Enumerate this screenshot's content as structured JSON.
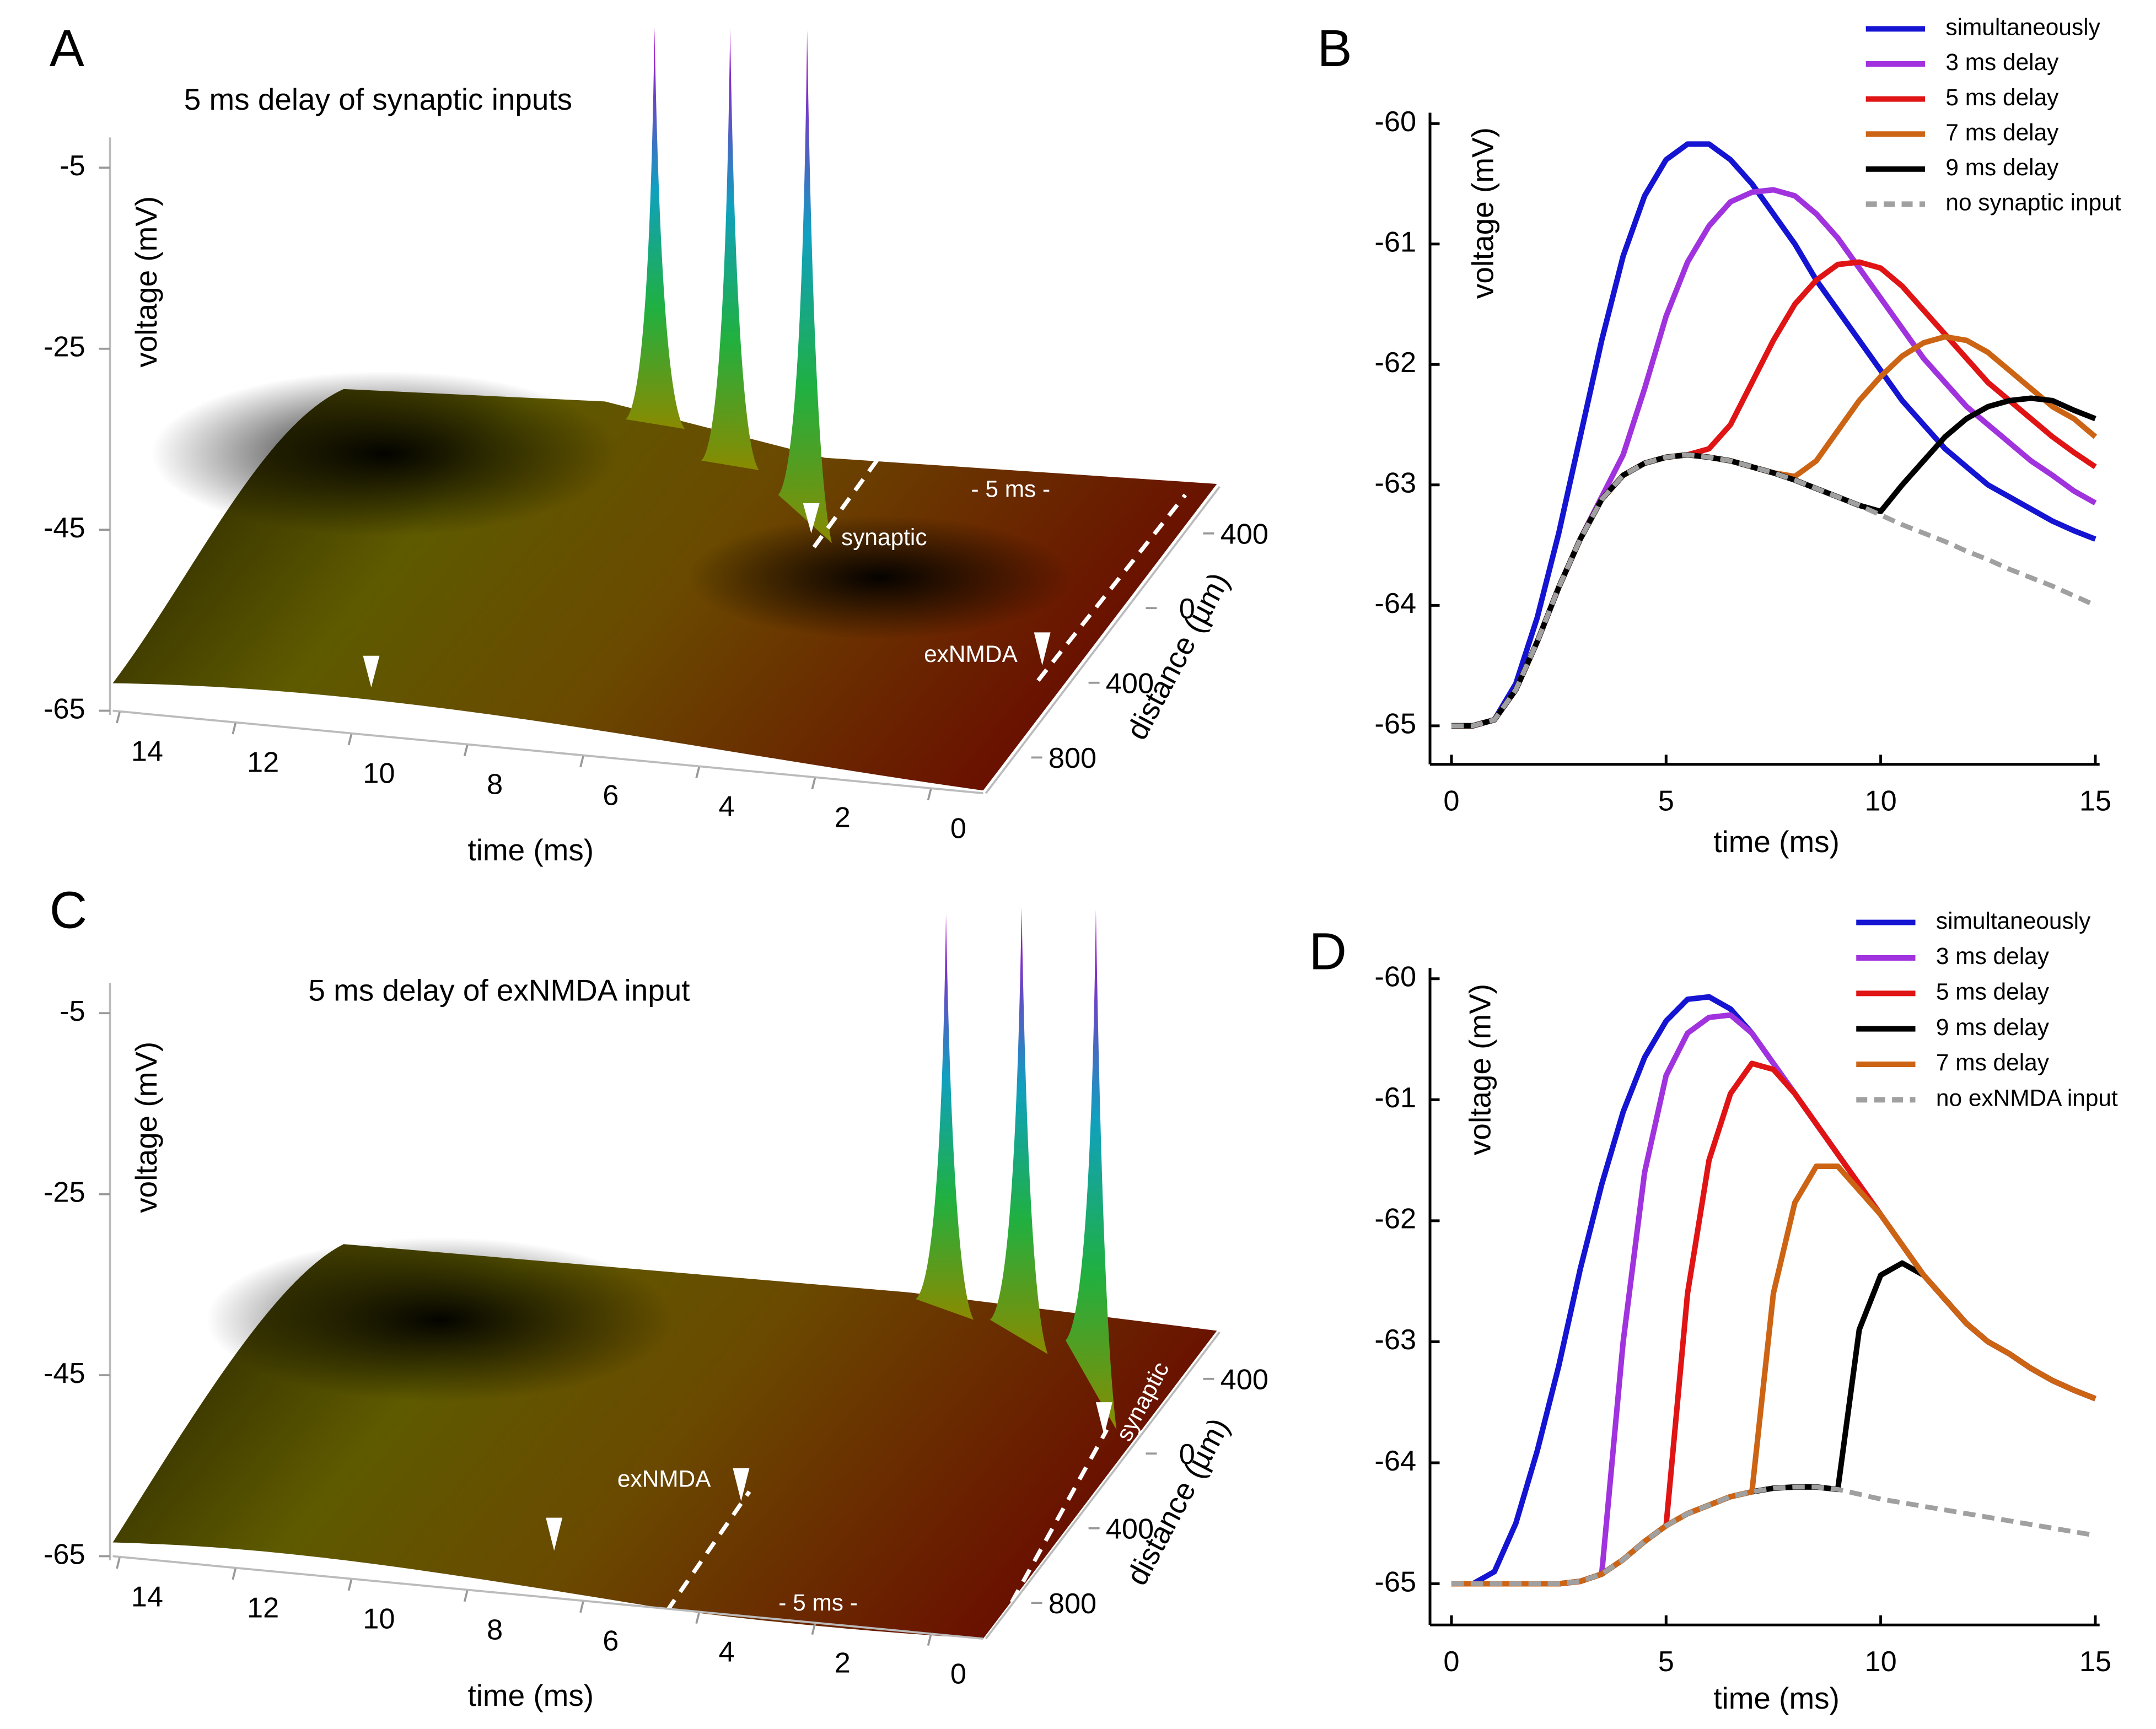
{
  "chart_data": [
    {
      "type": "surface3d",
      "panel": "A",
      "title": "5 ms delay of synaptic inputs",
      "xlabel": "time (ms)",
      "ylabel": "distance (µm)",
      "zlabel": "voltage (mV)",
      "xticks": [
        14,
        12,
        10,
        8,
        6,
        4,
        2,
        0
      ],
      "yticks": [
        {
          "value": -400,
          "label": "400"
        },
        0,
        400,
        800
      ],
      "zticks": [
        -5,
        -25,
        -45,
        -65
      ],
      "annotations": [
        "- 5 ms -",
        "synaptic",
        "exNMDA"
      ]
    },
    {
      "type": "line",
      "panel": "B",
      "xlabel": "time (ms)",
      "ylabel": "voltage (mV)",
      "xlim": [
        -0.5,
        15.1
      ],
      "ylim": [
        -65.32,
        -59.91
      ],
      "xticks": [
        0,
        5,
        10,
        15
      ],
      "yticks": [
        -60,
        -61,
        -62,
        -63,
        -64,
        -65
      ],
      "x": [
        0,
        0.5,
        1,
        1.5,
        2,
        2.5,
        3,
        3.5,
        4,
        4.5,
        5,
        5.5,
        6,
        6.5,
        7,
        7.5,
        8,
        8.5,
        9,
        9.5,
        10,
        10.5,
        11,
        11.5,
        12,
        12.5,
        13,
        13.5,
        14,
        14.5,
        15
      ],
      "series": [
        {
          "name": "simultaneously",
          "color": "#1414d2",
          "values": [
            -65,
            -65,
            -64.95,
            -64.65,
            -64.1,
            -63.4,
            -62.6,
            -61.8,
            -61.1,
            -60.6,
            -60.3,
            -60.17,
            -60.17,
            -60.3,
            -60.5,
            -60.75,
            -61.0,
            -61.3,
            -61.55,
            -61.8,
            -62.05,
            -62.3,
            -62.5,
            -62.7,
            -62.85,
            -63.0,
            -63.1,
            -63.2,
            -63.3,
            -63.38,
            -63.45
          ]
        },
        {
          "name": "3 ms delay",
          "color": "#a033dd",
          "values": [
            -65,
            -65,
            -64.95,
            -64.7,
            -64.3,
            -63.85,
            -63.45,
            -63.1,
            -62.75,
            -62.2,
            -61.6,
            -61.15,
            -60.85,
            -60.65,
            -60.57,
            -60.55,
            -60.6,
            -60.75,
            -60.95,
            -61.2,
            -61.45,
            -61.7,
            -61.95,
            -62.15,
            -62.35,
            -62.5,
            -62.65,
            -62.8,
            -62.92,
            -63.05,
            -63.15
          ]
        },
        {
          "name": "5 ms delay",
          "color": "#e01414",
          "values": [
            -65,
            -65,
            -64.95,
            -64.7,
            -64.3,
            -63.85,
            -63.45,
            -63.12,
            -62.92,
            -62.82,
            -62.77,
            -62.75,
            -62.7,
            -62.5,
            -62.15,
            -61.8,
            -61.5,
            -61.3,
            -61.17,
            -61.15,
            -61.2,
            -61.35,
            -61.55,
            -61.75,
            -61.95,
            -62.15,
            -62.3,
            -62.45,
            -62.6,
            -62.73,
            -62.85
          ]
        },
        {
          "name": "7 ms delay",
          "color": "#cc6414",
          "values": [
            -65,
            -65,
            -64.95,
            -64.7,
            -64.3,
            -63.85,
            -63.45,
            -63.12,
            -62.92,
            -62.82,
            -62.77,
            -62.75,
            -62.77,
            -62.8,
            -62.85,
            -62.9,
            -62.93,
            -62.8,
            -62.55,
            -62.3,
            -62.1,
            -61.93,
            -61.82,
            -61.77,
            -61.8,
            -61.9,
            -62.05,
            -62.2,
            -62.35,
            -62.45,
            -62.6
          ]
        },
        {
          "name": "9 ms delay",
          "color": "#000000",
          "values": [
            -65,
            -65,
            -64.95,
            -64.7,
            -64.3,
            -63.85,
            -63.45,
            -63.12,
            -62.92,
            -62.82,
            -62.77,
            -62.75,
            -62.77,
            -62.8,
            -62.85,
            -62.9,
            -62.96,
            -63.03,
            -63.1,
            -63.17,
            -63.22,
            -63.0,
            -62.8,
            -62.6,
            -62.45,
            -62.35,
            -62.3,
            -62.28,
            -62.3,
            -62.38,
            -62.45
          ]
        },
        {
          "name": "no synaptic input",
          "color": "#a0a0a0",
          "style": "dashed",
          "values": [
            -65,
            -65,
            -64.95,
            -64.7,
            -64.3,
            -63.85,
            -63.45,
            -63.12,
            -62.92,
            -62.82,
            -62.77,
            -62.75,
            -62.77,
            -62.8,
            -62.85,
            -62.9,
            -62.96,
            -63.03,
            -63.1,
            -63.17,
            -63.25,
            -63.33,
            -63.4,
            -63.47,
            -63.55,
            -63.62,
            -63.7,
            -63.77,
            -63.84,
            -63.92,
            -64.0
          ]
        }
      ]
    },
    {
      "type": "surface3d",
      "panel": "C",
      "title": "5 ms delay of exNMDA input",
      "xlabel": "time (ms)",
      "ylabel": "distance (µm)",
      "zlabel": "voltage (mV)",
      "xticks": [
        14,
        12,
        10,
        8,
        6,
        4,
        2,
        0
      ],
      "yticks": [
        {
          "value": -400,
          "label": "400"
        },
        0,
        400,
        800
      ],
      "zticks": [
        -5,
        -25,
        -45,
        -65
      ],
      "annotations": [
        "exNMDA",
        "synaptic",
        "- 5 ms -"
      ]
    },
    {
      "type": "line",
      "panel": "D",
      "xlabel": "time (ms)",
      "ylabel": "voltage (mV)",
      "xlim": [
        -0.5,
        15.1
      ],
      "ylim": [
        -65.34,
        -59.91
      ],
      "xticks": [
        0,
        5,
        10,
        15
      ],
      "yticks": [
        -60,
        -61,
        -62,
        -63,
        -64,
        -65
      ],
      "x": [
        0,
        0.5,
        1,
        1.5,
        2,
        2.5,
        3,
        3.5,
        4,
        4.5,
        5,
        5.5,
        6,
        6.5,
        7,
        7.5,
        8,
        8.5,
        9,
        9.5,
        10,
        10.5,
        11,
        11.5,
        12,
        12.5,
        13,
        13.5,
        14,
        14.5,
        15
      ],
      "series": [
        {
          "name": "simultaneously",
          "color": "#1414d2",
          "values": [
            -65,
            -65,
            -64.9,
            -64.5,
            -63.9,
            -63.2,
            -62.4,
            -61.7,
            -61.1,
            -60.65,
            -60.35,
            -60.17,
            -60.15,
            -60.25,
            -60.45,
            -60.7,
            -60.95,
            -61.2,
            -61.45,
            -61.7,
            -61.95,
            -62.2,
            -62.45,
            -62.65,
            -62.85,
            -63.0,
            -63.1,
            -63.22,
            -63.32,
            -63.4,
            -63.47
          ]
        },
        {
          "name": "3 ms delay",
          "color": "#a033dd",
          "values": [
            -65,
            -65,
            -65,
            -65,
            -65,
            -65,
            -64.98,
            -64.92,
            -63.0,
            -61.6,
            -60.8,
            -60.45,
            -60.32,
            -60.3,
            -60.45,
            -60.7,
            -60.95,
            -61.2,
            -61.45,
            -61.7,
            -61.95,
            -62.2,
            -62.45,
            -62.65,
            -62.85,
            -63.0,
            -63.1,
            -63.22,
            -63.32,
            -63.4,
            -63.47
          ]
        },
        {
          "name": "5 ms delay",
          "color": "#e01414",
          "values": [
            -65,
            -65,
            -65,
            -65,
            -65,
            -65,
            -64.98,
            -64.92,
            -64.8,
            -64.65,
            -64.52,
            -62.6,
            -61.5,
            -60.95,
            -60.7,
            -60.75,
            -60.95,
            -61.2,
            -61.45,
            -61.7,
            -61.95,
            -62.2,
            -62.45,
            -62.65,
            -62.85,
            -63.0,
            -63.1,
            -63.22,
            -63.32,
            -63.4,
            -63.47
          ]
        },
        {
          "name": "9 ms delay",
          "color": "#000000",
          "values": [
            -65,
            -65,
            -65,
            -65,
            -65,
            -65,
            -64.98,
            -64.92,
            -64.8,
            -64.65,
            -64.52,
            -64.42,
            -64.35,
            -64.28,
            -64.24,
            -64.21,
            -64.2,
            -64.2,
            -64.22,
            -62.9,
            -62.45,
            -62.35,
            -62.45,
            -62.65,
            -62.85,
            -63.0,
            -63.1,
            -63.22,
            -63.32,
            -63.4,
            -63.47
          ]
        },
        {
          "name": "7 ms delay",
          "color": "#cc6414",
          "values": [
            -65,
            -65,
            -65,
            -65,
            -65,
            -65,
            -64.98,
            -64.92,
            -64.8,
            -64.65,
            -64.52,
            -64.42,
            -64.35,
            -64.28,
            -64.24,
            -62.6,
            -61.85,
            -61.55,
            -61.55,
            -61.75,
            -61.95,
            -62.2,
            -62.45,
            -62.65,
            -62.85,
            -63.0,
            -63.1,
            -63.22,
            -63.32,
            -63.4,
            -63.47
          ]
        },
        {
          "name": "no exNMDA input",
          "color": "#a0a0a0",
          "style": "dashed",
          "values": [
            -65,
            -65,
            -65,
            -65,
            -65,
            -65,
            -64.98,
            -64.92,
            -64.8,
            -64.65,
            -64.52,
            -64.42,
            -64.35,
            -64.28,
            -64.24,
            -64.21,
            -64.2,
            -64.2,
            -64.22,
            -64.26,
            -64.3,
            -64.33,
            -64.36,
            -64.39,
            -64.42,
            -64.45,
            -64.48,
            -64.51,
            -64.54,
            -64.57,
            -64.6
          ]
        }
      ]
    }
  ]
}
